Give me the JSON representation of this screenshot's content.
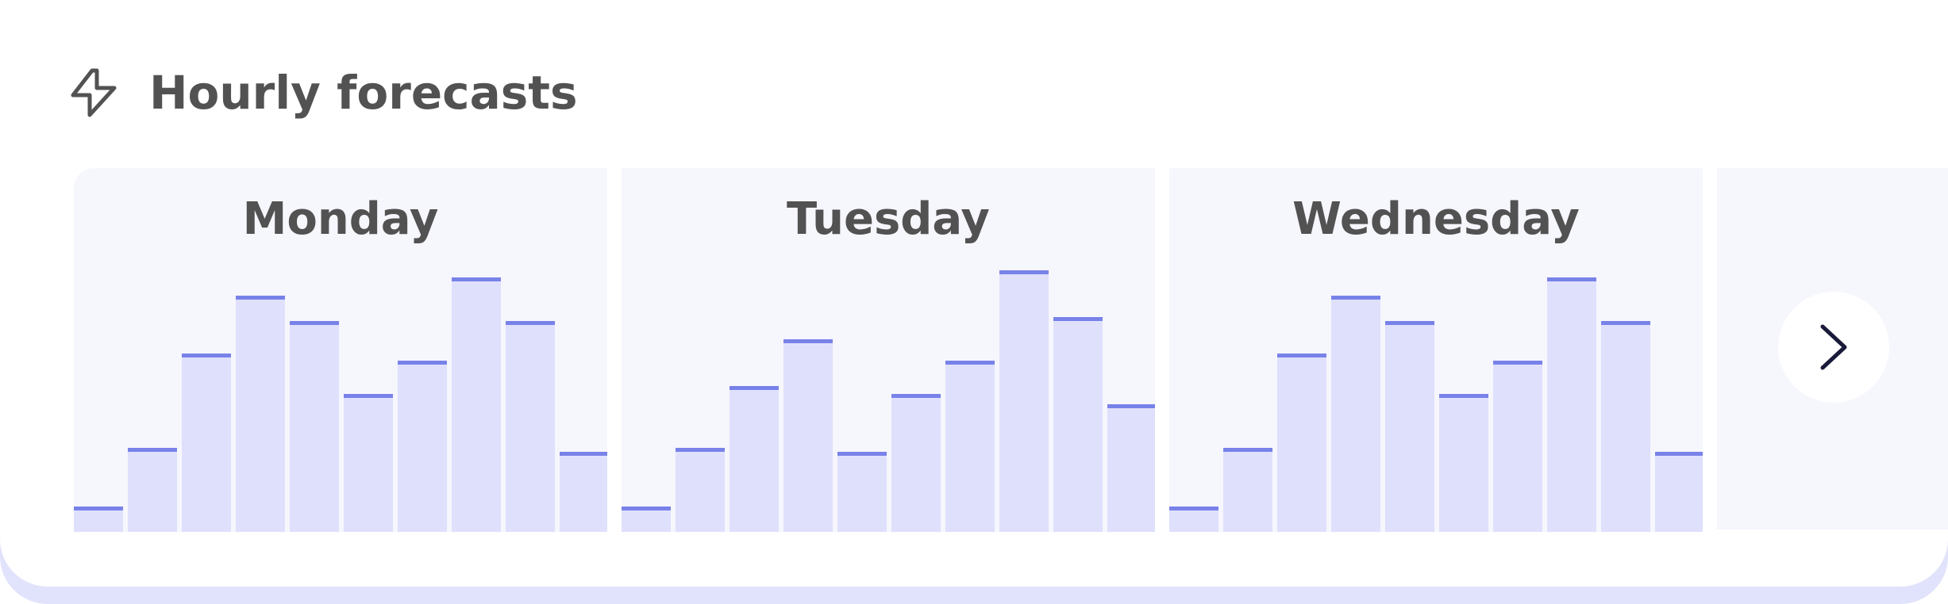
{
  "header": {
    "title": "Hourly forecasts",
    "icon": "lightning-bolt-icon"
  },
  "colors": {
    "bar_fill": "#dfe0fc",
    "bar_top": "#7882e8",
    "panel_bg": "#f6f6fd",
    "text": "#525252",
    "shadow": "#e1e2fb"
  },
  "navigation": {
    "next_icon": "chevron-right-icon"
  },
  "chart_data": [
    {
      "type": "bar",
      "title": "Monday",
      "values": [
        0.07,
        0.23,
        0.49,
        0.65,
        0.58,
        0.38,
        0.47,
        0.7,
        0.58,
        0.22
      ],
      "ylim": [
        0,
        1
      ]
    },
    {
      "type": "bar",
      "title": "Tuesday",
      "values": [
        0.07,
        0.23,
        0.4,
        0.53,
        0.22,
        0.38,
        0.47,
        0.72,
        0.59,
        0.35
      ],
      "ylim": [
        0,
        1
      ]
    },
    {
      "type": "bar",
      "title": "Wednesday",
      "values": [
        0.07,
        0.23,
        0.49,
        0.65,
        0.58,
        0.38,
        0.47,
        0.7,
        0.58,
        0.22
      ],
      "ylim": [
        0,
        1
      ]
    }
  ]
}
